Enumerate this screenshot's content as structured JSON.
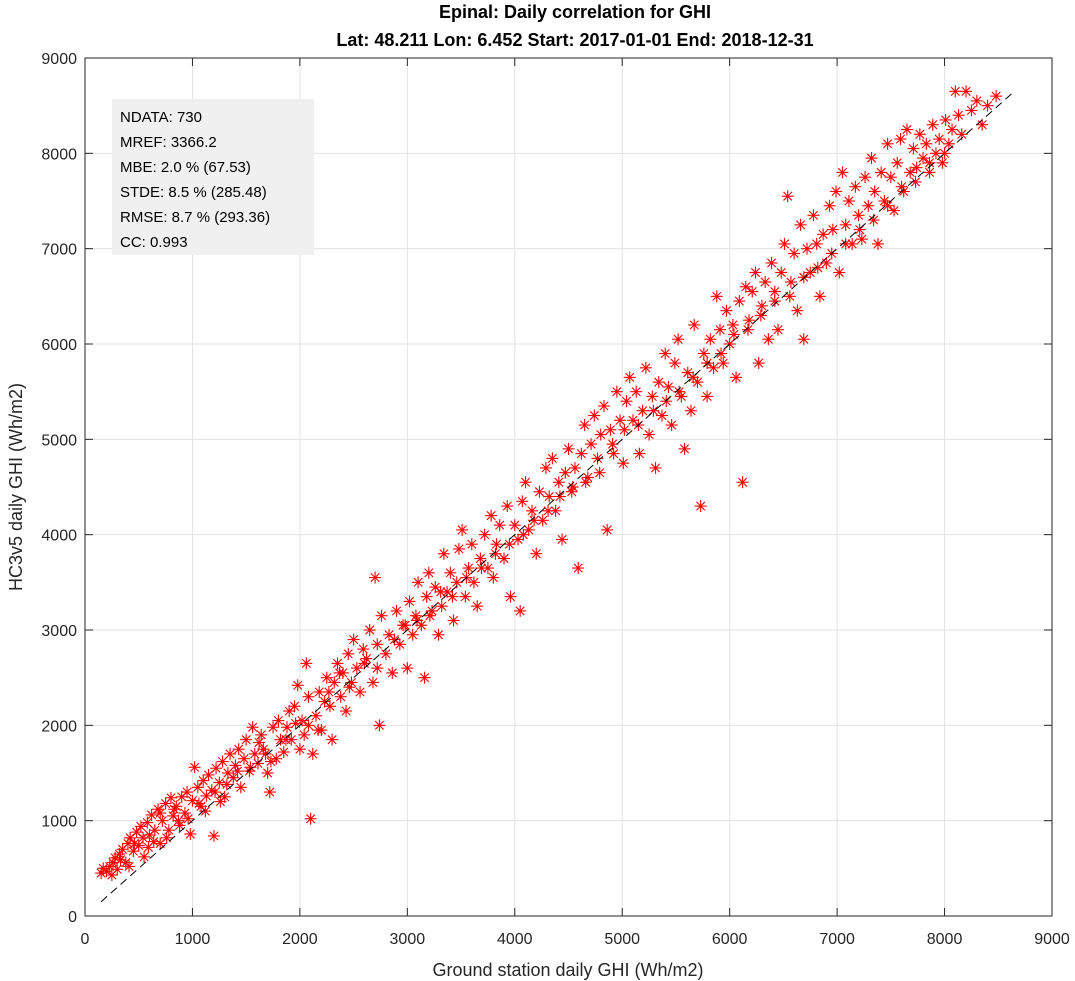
{
  "chart_data": {
    "type": "scatter",
    "title": "Epinal: Daily correlation for GHI",
    "subtitle": "Lat: 48.211 Lon: 6.452 Start: 2017-01-01 End: 2018-12-31",
    "xlabel": "Ground station daily GHI (Wh/m2)",
    "ylabel": "HC3v5 daily GHI (Wh/m2)",
    "xlim": [
      0,
      9000
    ],
    "ylim": [
      0,
      9000
    ],
    "xticks": [
      "0",
      "1000",
      "2000",
      "3000",
      "4000",
      "5000",
      "6000",
      "7000",
      "8000",
      "9000"
    ],
    "yticks": [
      "0",
      "1000",
      "2000",
      "3000",
      "4000",
      "5000",
      "6000",
      "7000",
      "8000",
      "9000"
    ],
    "grid": true,
    "marker": "asterisk",
    "marker_color": "#ff0000",
    "reference_line": {
      "style": "dashed",
      "color": "#000000",
      "from": [
        150,
        150
      ],
      "to": [
        8650,
        8650
      ]
    },
    "stats": {
      "ndata": "NDATA: 730",
      "mref": "MREF:  3366.2",
      "mbe": "MBE:  2.0 % (67.53)",
      "stde": "STDE:  8.5 % (285.48)",
      "rmse": "RMSE: 8.7 % (293.36)",
      "cc": "CC:    0.993"
    },
    "points": [
      [
        150,
        450
      ],
      [
        170,
        500
      ],
      [
        200,
        470
      ],
      [
        230,
        520
      ],
      [
        260,
        560
      ],
      [
        280,
        610
      ],
      [
        300,
        490
      ],
      [
        320,
        650
      ],
      [
        350,
        700
      ],
      [
        380,
        560
      ],
      [
        400,
        760
      ],
      [
        420,
        820
      ],
      [
        450,
        680
      ],
      [
        480,
        880
      ],
      [
        500,
        740
      ],
      [
        520,
        940
      ],
      [
        550,
        620
      ],
      [
        580,
        980
      ],
      [
        600,
        850
      ],
      [
        620,
        1060
      ],
      [
        650,
        900
      ],
      [
        680,
        1120
      ],
      [
        700,
        760
      ],
      [
        720,
        1000
      ],
      [
        750,
        1180
      ],
      [
        780,
        900
      ],
      [
        800,
        1240
      ],
      [
        820,
        1050
      ],
      [
        850,
        1150
      ],
      [
        880,
        950
      ],
      [
        900,
        1250
      ],
      [
        930,
        1080
      ],
      [
        950,
        1300
      ],
      [
        980,
        860
      ],
      [
        1000,
        1210
      ],
      [
        1020,
        1560
      ],
      [
        1050,
        1350
      ],
      [
        1080,
        1150
      ],
      [
        1100,
        1420
      ],
      [
        1130,
        1260
      ],
      [
        1150,
        1480
      ],
      [
        1180,
        1320
      ],
      [
        1200,
        840
      ],
      [
        1220,
        1550
      ],
      [
        1250,
        1400
      ],
      [
        1280,
        1620
      ],
      [
        1300,
        1250
      ],
      [
        1330,
        1500
      ],
      [
        1350,
        1700
      ],
      [
        1380,
        1450
      ],
      [
        1400,
        1580
      ],
      [
        1430,
        1750
      ],
      [
        1450,
        1350
      ],
      [
        1480,
        1650
      ],
      [
        1500,
        1850
      ],
      [
        1530,
        1520
      ],
      [
        1560,
        1980
      ],
      [
        1580,
        1700
      ],
      [
        1610,
        1600
      ],
      [
        1640,
        1900
      ],
      [
        1660,
        1750
      ],
      [
        1700,
        1500
      ],
      [
        1720,
        1300
      ],
      [
        1750,
        1980
      ],
      [
        1780,
        1650
      ],
      [
        1800,
        2050
      ],
      [
        1820,
        1850
      ],
      [
        1850,
        1720
      ],
      [
        1880,
        1980
      ],
      [
        1900,
        2150
      ],
      [
        1920,
        1850
      ],
      [
        1950,
        2200
      ],
      [
        1980,
        2420
      ],
      [
        2000,
        1750
      ],
      [
        2020,
        2050
      ],
      [
        2040,
        1900
      ],
      [
        2060,
        2650
      ],
      [
        2080,
        2000
      ],
      [
        2100,
        1020
      ],
      [
        2120,
        1700
      ],
      [
        2150,
        2100
      ],
      [
        2180,
        2350
      ],
      [
        2200,
        1950
      ],
      [
        2230,
        2250
      ],
      [
        2250,
        2500
      ],
      [
        2280,
        2200
      ],
      [
        2300,
        1850
      ],
      [
        2320,
        2450
      ],
      [
        2350,
        2650
      ],
      [
        2380,
        2300
      ],
      [
        2400,
        2550
      ],
      [
        2430,
        2150
      ],
      [
        2450,
        2750
      ],
      [
        2480,
        2450
      ],
      [
        2500,
        2900
      ],
      [
        2530,
        2600
      ],
      [
        2560,
        2350
      ],
      [
        2590,
        2800
      ],
      [
        2620,
        2700
      ],
      [
        2650,
        3000
      ],
      [
        2680,
        2450
      ],
      [
        2700,
        3550
      ],
      [
        2720,
        2850
      ],
      [
        2740,
        2000
      ],
      [
        2760,
        3150
      ],
      [
        2800,
        2750
      ],
      [
        2830,
        2950
      ],
      [
        2860,
        2550
      ],
      [
        2900,
        3200
      ],
      [
        2930,
        2850
      ],
      [
        2960,
        3050
      ],
      [
        3000,
        2600
      ],
      [
        3020,
        3300
      ],
      [
        3050,
        2950
      ],
      [
        3080,
        3150
      ],
      [
        3100,
        3500
      ],
      [
        3130,
        3050
      ],
      [
        3160,
        2500
      ],
      [
        3180,
        3350
      ],
      [
        3200,
        3600
      ],
      [
        3230,
        3200
      ],
      [
        3260,
        3450
      ],
      [
        3290,
        2950
      ],
      [
        3320,
        3250
      ],
      [
        3340,
        3800
      ],
      [
        3370,
        3400
      ],
      [
        3400,
        3600
      ],
      [
        3430,
        3100
      ],
      [
        3460,
        3500
      ],
      [
        3480,
        3850
      ],
      [
        3510,
        4050
      ],
      [
        3540,
        3350
      ],
      [
        3570,
        3650
      ],
      [
        3600,
        3900
      ],
      [
        3620,
        3500
      ],
      [
        3650,
        3250
      ],
      [
        3680,
        3750
      ],
      [
        3720,
        4000
      ],
      [
        3750,
        3650
      ],
      [
        3780,
        4200
      ],
      [
        3800,
        3550
      ],
      [
        3830,
        3900
      ],
      [
        3860,
        4100
      ],
      [
        3900,
        3750
      ],
      [
        3930,
        4300
      ],
      [
        3960,
        3350
      ],
      [
        4000,
        4100
      ],
      [
        4030,
        3950
      ],
      [
        4050,
        3200
      ],
      [
        4070,
        4350
      ],
      [
        4100,
        4550
      ],
      [
        4130,
        4050
      ],
      [
        4160,
        4250
      ],
      [
        4200,
        3800
      ],
      [
        4230,
        4450
      ],
      [
        4260,
        4150
      ],
      [
        4290,
        4700
      ],
      [
        4320,
        4400
      ],
      [
        4350,
        4800
      ],
      [
        4380,
        4250
      ],
      [
        4410,
        4550
      ],
      [
        4440,
        3950
      ],
      [
        4470,
        4650
      ],
      [
        4500,
        4900
      ],
      [
        4530,
        4450
      ],
      [
        4560,
        4700
      ],
      [
        4590,
        3650
      ],
      [
        4620,
        4850
      ],
      [
        4650,
        5150
      ],
      [
        4680,
        4600
      ],
      [
        4710,
        4950
      ],
      [
        4740,
        5250
      ],
      [
        4770,
        4800
      ],
      [
        4800,
        5050
      ],
      [
        4830,
        5350
      ],
      [
        4860,
        4050
      ],
      [
        4890,
        5100
      ],
      [
        4920,
        4850
      ],
      [
        4950,
        5500
      ],
      [
        4980,
        5200
      ],
      [
        5010,
        4750
      ],
      [
        5040,
        5400
      ],
      [
        5070,
        5650
      ],
      [
        5100,
        5200
      ],
      [
        5130,
        5500
      ],
      [
        5160,
        4850
      ],
      [
        5190,
        5300
      ],
      [
        5220,
        5750
      ],
      [
        5250,
        5050
      ],
      [
        5280,
        5450
      ],
      [
        5310,
        4700
      ],
      [
        5340,
        5600
      ],
      [
        5370,
        5250
      ],
      [
        5400,
        5900
      ],
      [
        5430,
        5550
      ],
      [
        5460,
        5150
      ],
      [
        5490,
        5800
      ],
      [
        5520,
        6050
      ],
      [
        5550,
        5450
      ],
      [
        5580,
        4900
      ],
      [
        5610,
        5700
      ],
      [
        5640,
        5300
      ],
      [
        5670,
        6200
      ],
      [
        5700,
        5600
      ],
      [
        5730,
        4300
      ],
      [
        5760,
        5900
      ],
      [
        5790,
        5450
      ],
      [
        5820,
        6050
      ],
      [
        5850,
        5750
      ],
      [
        5880,
        6500
      ],
      [
        5910,
        6150
      ],
      [
        5940,
        5800
      ],
      [
        5970,
        6350
      ],
      [
        6000,
        6000
      ],
      [
        6030,
        6200
      ],
      [
        6060,
        5650
      ],
      [
        6090,
        6450
      ],
      [
        6120,
        4550
      ],
      [
        6150,
        6600
      ],
      [
        6180,
        6250
      ],
      [
        6210,
        6550
      ],
      [
        6240,
        6750
      ],
      [
        6270,
        5800
      ],
      [
        6300,
        6400
      ],
      [
        6330,
        6650
      ],
      [
        6360,
        6050
      ],
      [
        6390,
        6850
      ],
      [
        6420,
        6550
      ],
      [
        6450,
        6150
      ],
      [
        6480,
        6750
      ],
      [
        6510,
        7050
      ],
      [
        6540,
        7550
      ],
      [
        6570,
        6650
      ],
      [
        6600,
        6950
      ],
      [
        6630,
        6350
      ],
      [
        6660,
        7250
      ],
      [
        6690,
        6050
      ],
      [
        6720,
        7000
      ],
      [
        6750,
        6750
      ],
      [
        6780,
        7350
      ],
      [
        6810,
        7050
      ],
      [
        6840,
        6500
      ],
      [
        6870,
        7150
      ],
      [
        6900,
        6850
      ],
      [
        6930,
        7450
      ],
      [
        6960,
        7200
      ],
      [
        6990,
        7600
      ],
      [
        7020,
        6750
      ],
      [
        7050,
        7800
      ],
      [
        7080,
        7250
      ],
      [
        7110,
        7500
      ],
      [
        7140,
        7050
      ],
      [
        7170,
        7650
      ],
      [
        7200,
        7350
      ],
      [
        7230,
        7100
      ],
      [
        7260,
        7750
      ],
      [
        7290,
        7450
      ],
      [
        7320,
        7950
      ],
      [
        7350,
        7600
      ],
      [
        7380,
        7050
      ],
      [
        7410,
        7800
      ],
      [
        7440,
        7500
      ],
      [
        7470,
        8100
      ],
      [
        7500,
        7750
      ],
      [
        7530,
        7400
      ],
      [
        7560,
        7900
      ],
      [
        7590,
        8150
      ],
      [
        7620,
        7600
      ],
      [
        7650,
        8250
      ],
      [
        7680,
        7800
      ],
      [
        7710,
        8050
      ],
      [
        7740,
        7850
      ],
      [
        7770,
        8200
      ],
      [
        7800,
        7950
      ],
      [
        7830,
        8100
      ],
      [
        7860,
        7800
      ],
      [
        7890,
        8300
      ],
      [
        7920,
        8000
      ],
      [
        7950,
        8150
      ],
      [
        7980,
        7900
      ],
      [
        8010,
        8350
      ],
      [
        8040,
        8100
      ],
      [
        8070,
        8250
      ],
      [
        8100,
        8650
      ],
      [
        8130,
        8400
      ],
      [
        8160,
        8200
      ],
      [
        8200,
        8650
      ],
      [
        8250,
        8450
      ],
      [
        8300,
        8550
      ],
      [
        8350,
        8300
      ],
      [
        8400,
        8500
      ],
      [
        8480,
        8600
      ],
      [
        250,
        430
      ],
      [
        330,
        590
      ],
      [
        410,
        520
      ],
      [
        460,
        760
      ],
      [
        540,
        820
      ],
      [
        590,
        720
      ],
      [
        640,
        780
      ],
      [
        700,
        1080
      ],
      [
        760,
        820
      ],
      [
        830,
        1120
      ],
      [
        870,
        1000
      ],
      [
        960,
        1020
      ],
      [
        1060,
        1180
      ],
      [
        1120,
        1100
      ],
      [
        1210,
        1300
      ],
      [
        1260,
        1200
      ],
      [
        1320,
        1380
      ],
      [
        1420,
        1520
      ],
      [
        1540,
        1560
      ],
      [
        1620,
        1820
      ],
      [
        1680,
        1700
      ],
      [
        1730,
        1620
      ],
      [
        1870,
        1850
      ],
      [
        1960,
        2020
      ],
      [
        2080,
        2300
      ],
      [
        2170,
        1950
      ],
      [
        2270,
        2350
      ],
      [
        2370,
        2550
      ],
      [
        2460,
        2400
      ],
      [
        2600,
        2650
      ],
      [
        2720,
        2600
      ],
      [
        2880,
        2900
      ],
      [
        2980,
        3050
      ],
      [
        3090,
        3100
      ],
      [
        3210,
        3150
      ],
      [
        3310,
        3400
      ],
      [
        3420,
        3350
      ],
      [
        3550,
        3550
      ],
      [
        3690,
        3650
      ],
      [
        3820,
        3800
      ],
      [
        3950,
        3900
      ],
      [
        4080,
        4000
      ],
      [
        4180,
        4150
      ],
      [
        4310,
        4250
      ],
      [
        4420,
        4400
      ],
      [
        4540,
        4500
      ],
      [
        4660,
        4550
      ],
      [
        4790,
        4650
      ],
      [
        4910,
        4950
      ],
      [
        5020,
        5100
      ],
      [
        5150,
        5150
      ],
      [
        5290,
        5300
      ],
      [
        5410,
        5400
      ],
      [
        5530,
        5500
      ],
      [
        5660,
        5650
      ],
      [
        5790,
        5800
      ],
      [
        5920,
        5900
      ],
      [
        6040,
        6100
      ],
      [
        6170,
        6150
      ],
      [
        6290,
        6300
      ],
      [
        6420,
        6450
      ],
      [
        6560,
        6500
      ],
      [
        6690,
        6700
      ],
      [
        6820,
        6800
      ],
      [
        6950,
        6950
      ],
      [
        7080,
        7050
      ],
      [
        7210,
        7200
      ],
      [
        7340,
        7300
      ],
      [
        7470,
        7450
      ],
      [
        7600,
        7650
      ],
      [
        7730,
        7700
      ],
      [
        7860,
        7900
      ],
      [
        8000,
        8000
      ]
    ]
  }
}
